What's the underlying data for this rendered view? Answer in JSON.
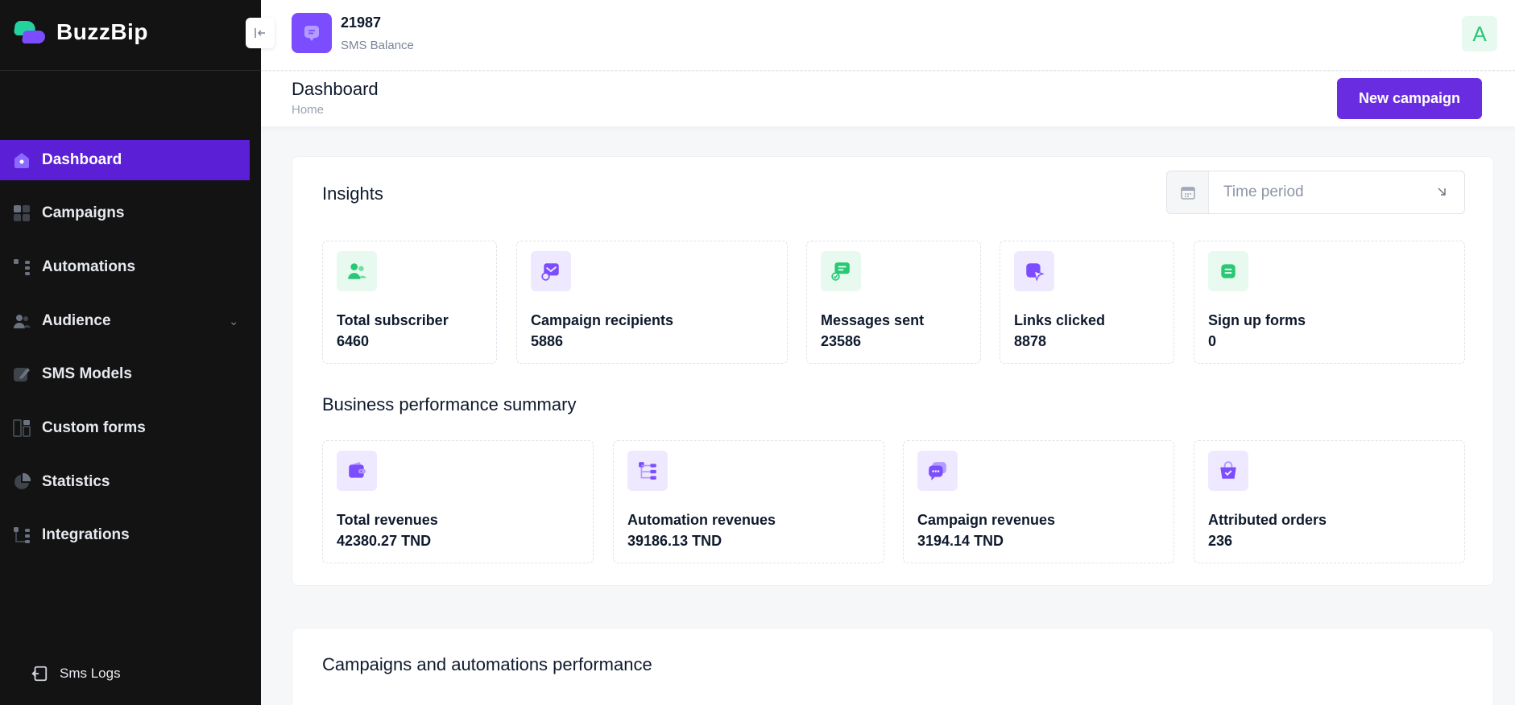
{
  "app": {
    "name": "BuzzBip"
  },
  "sidebar": {
    "items": [
      {
        "label": "Dashboard",
        "icon": "home-icon"
      },
      {
        "label": "Campaigns",
        "icon": "grid-icon"
      },
      {
        "label": "Automations",
        "icon": "flow-icon"
      },
      {
        "label": "Audience",
        "icon": "users-icon"
      },
      {
        "label": "SMS Models",
        "icon": "template-icon"
      },
      {
        "label": "Custom forms",
        "icon": "form-icon"
      },
      {
        "label": "Statistics",
        "icon": "pie-chart-icon"
      },
      {
        "label": "Integrations",
        "icon": "plug-icon"
      }
    ],
    "footer": {
      "label": "Sms Logs",
      "icon": "logout-icon"
    }
  },
  "topbar": {
    "balance_value": "21987",
    "balance_label": "SMS Balance",
    "avatar_letter": "A"
  },
  "header": {
    "title": "Dashboard",
    "breadcrumb": "Home",
    "new_campaign_label": "New campaign"
  },
  "insights": {
    "title": "Insights",
    "time_period_placeholder": "Time period",
    "stats": [
      {
        "label": "Total subscriber",
        "value": "6460"
      },
      {
        "label": "Campaign recipients",
        "value": "5886"
      },
      {
        "label": "Messages sent",
        "value": "23586"
      },
      {
        "label": "Links clicked",
        "value": "8878"
      },
      {
        "label": "Sign up forms",
        "value": "0"
      }
    ]
  },
  "business": {
    "title": "Business performance summary",
    "stats": [
      {
        "label": "Total revenues",
        "value": "42380.27 TND"
      },
      {
        "label": "Automation revenues",
        "value": "39186.13 TND"
      },
      {
        "label": "Campaign revenues",
        "value": "3194.14 TND"
      },
      {
        "label": "Attributed orders",
        "value": "236"
      }
    ]
  },
  "performance": {
    "title": "Campaigns and automations performance"
  },
  "colors": {
    "brand": "#6a2ce0",
    "active_nav": "#5b1fd6",
    "success": "#29c874",
    "sidebar_bg": "#131313"
  }
}
